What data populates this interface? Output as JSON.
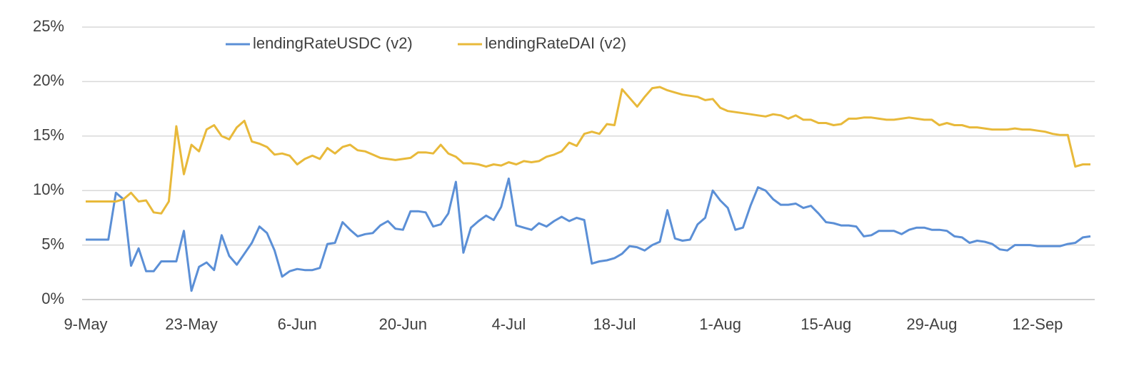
{
  "chart_data": {
    "type": "line",
    "categories": [
      "9-May",
      null,
      null,
      null,
      null,
      null,
      null,
      null,
      null,
      null,
      null,
      null,
      null,
      null,
      "23-May",
      null,
      null,
      null,
      null,
      null,
      null,
      null,
      null,
      null,
      null,
      null,
      null,
      null,
      "6-Jun",
      null,
      null,
      null,
      null,
      null,
      null,
      null,
      null,
      null,
      null,
      null,
      null,
      null,
      "20-Jun",
      null,
      null,
      null,
      null,
      null,
      null,
      null,
      null,
      null,
      null,
      null,
      null,
      null,
      "4-Jul",
      null,
      null,
      null,
      null,
      null,
      null,
      null,
      null,
      null,
      null,
      null,
      null,
      null,
      "18-Jul",
      null,
      null,
      null,
      null,
      null,
      null,
      null,
      null,
      null,
      null,
      null,
      null,
      null,
      "1-Aug",
      null,
      null,
      null,
      null,
      null,
      null,
      null,
      null,
      null,
      null,
      null,
      null,
      null,
      "15-Aug",
      null,
      null,
      null,
      null,
      null,
      null,
      null,
      null,
      null,
      null,
      null,
      null,
      null,
      "29-Aug",
      null,
      null,
      null,
      null,
      null,
      null,
      null,
      null,
      null,
      null,
      null,
      null,
      null,
      "12-Sep",
      null,
      null,
      null,
      null,
      null,
      null,
      null
    ],
    "series": [
      {
        "name": "lendingRateUSDC (v2)",
        "color": "#5b8fd6",
        "values": [
          5.5,
          5.5,
          5.5,
          5.5,
          9.8,
          9.2,
          3.1,
          4.7,
          2.6,
          2.6,
          3.5,
          3.5,
          3.5,
          6.3,
          0.8,
          3.0,
          3.4,
          2.7,
          5.9,
          4.0,
          3.2,
          4.2,
          5.2,
          6.7,
          6.1,
          4.5,
          2.1,
          2.6,
          2.8,
          2.7,
          2.7,
          2.9,
          5.1,
          5.2,
          7.1,
          6.4,
          5.8,
          6.0,
          6.1,
          6.8,
          7.2,
          6.5,
          6.4,
          8.1,
          8.1,
          8.0,
          6.7,
          6.9,
          7.9,
          10.8,
          4.3,
          6.6,
          7.2,
          7.7,
          7.3,
          8.5,
          11.1,
          6.8,
          6.6,
          6.4,
          7.0,
          6.7,
          7.2,
          7.6,
          7.2,
          7.5,
          7.3,
          3.3,
          3.5,
          3.6,
          3.8,
          4.2,
          4.9,
          4.8,
          4.5,
          5.0,
          5.3,
          8.2,
          5.6,
          5.4,
          5.5,
          6.9,
          7.5,
          10.0,
          9.1,
          8.4,
          6.4,
          6.6,
          8.6,
          10.3,
          10.0,
          9.2,
          8.7,
          8.7,
          8.8,
          8.4,
          8.6,
          7.9,
          7.1,
          7.0,
          6.8,
          6.8,
          6.7,
          5.8,
          5.9,
          6.3,
          6.3,
          6.3,
          6.0,
          6.4,
          6.6,
          6.6,
          6.4,
          6.4,
          6.3,
          5.8,
          5.7,
          5.2,
          5.4,
          5.3,
          5.1,
          4.6,
          4.5,
          5.0,
          5.0,
          5.0,
          4.9,
          4.9,
          4.9,
          4.9,
          5.1,
          5.2,
          5.7,
          5.8
        ]
      },
      {
        "name": "lendingRateDAI (v2)",
        "color": "#e8b93a",
        "values": [
          9.0,
          9.0,
          9.0,
          9.0,
          9.0,
          9.2,
          9.8,
          9.0,
          9.1,
          8.0,
          7.9,
          9.0,
          15.9,
          11.5,
          14.2,
          13.6,
          15.6,
          16.0,
          15.0,
          14.7,
          15.8,
          16.4,
          14.5,
          14.3,
          14.0,
          13.3,
          13.4,
          13.2,
          12.4,
          12.9,
          13.2,
          12.9,
          13.9,
          13.4,
          14.0,
          14.2,
          13.7,
          13.6,
          13.3,
          13.0,
          12.9,
          12.8,
          12.9,
          13.0,
          13.5,
          13.5,
          13.4,
          14.2,
          13.4,
          13.1,
          12.5,
          12.5,
          12.4,
          12.2,
          12.4,
          12.3,
          12.6,
          12.4,
          12.7,
          12.6,
          12.7,
          13.1,
          13.3,
          13.6,
          14.4,
          14.1,
          15.2,
          15.4,
          15.2,
          16.1,
          16.0,
          19.3,
          18.5,
          17.7,
          18.6,
          19.4,
          19.5,
          19.2,
          19.0,
          18.8,
          18.7,
          18.6,
          18.3,
          18.4,
          17.6,
          17.3,
          17.2,
          17.1,
          17.0,
          16.9,
          16.8,
          17.0,
          16.9,
          16.6,
          16.9,
          16.5,
          16.5,
          16.2,
          16.2,
          16.0,
          16.1,
          16.6,
          16.6,
          16.7,
          16.7,
          16.6,
          16.5,
          16.5,
          16.6,
          16.7,
          16.6,
          16.5,
          16.5,
          16.0,
          16.2,
          16.0,
          16.0,
          15.8,
          15.8,
          15.7,
          15.6,
          15.6,
          15.6,
          15.7,
          15.6,
          15.6,
          15.5,
          15.4,
          15.2,
          15.1,
          15.1,
          12.2,
          12.4,
          12.4
        ]
      }
    ],
    "ylim": [
      0,
      25
    ],
    "yticks": [
      {
        "value": 0,
        "label": "0%"
      },
      {
        "value": 5,
        "label": "5%"
      },
      {
        "value": 10,
        "label": "10%"
      },
      {
        "value": 15,
        "label": "15%"
      },
      {
        "value": 20,
        "label": "20%"
      },
      {
        "value": 25,
        "label": "25%"
      }
    ],
    "grid": true,
    "legend": "top"
  }
}
